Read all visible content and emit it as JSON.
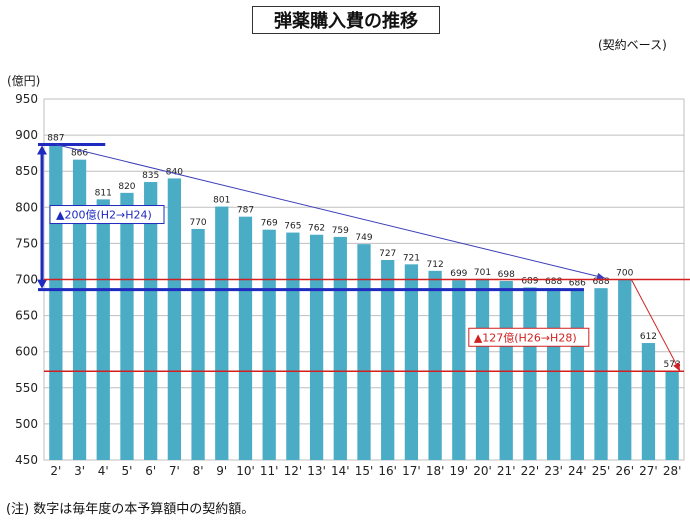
{
  "chart_data": {
    "type": "bar",
    "title": "弾薬購入費の推移",
    "subtitle": "(契約ベース)",
    "ylabel": "(億円)",
    "xlabel": "",
    "ylim": [
      450,
      950
    ],
    "yticks": [
      450,
      500,
      550,
      600,
      650,
      700,
      750,
      800,
      850,
      900,
      950
    ],
    "grid": true,
    "categories": [
      "2'",
      "3'",
      "4'",
      "5'",
      "6'",
      "7'",
      "8'",
      "9'",
      "10'",
      "11'",
      "12'",
      "13'",
      "14'",
      "15'",
      "16'",
      "17'",
      "18'",
      "19'",
      "20'",
      "21'",
      "22'",
      "23'",
      "24'",
      "25'",
      "26'",
      "27'",
      "28'"
    ],
    "values": [
      887,
      866,
      811,
      820,
      835,
      840,
      770,
      801,
      787,
      769,
      765,
      762,
      759,
      749,
      727,
      721,
      712,
      699,
      701,
      698,
      689,
      688,
      686,
      688,
      700,
      612,
      573
    ],
    "bar_color": "#4bacc6",
    "annotations": [
      {
        "text": "▲200億(H2→H24)",
        "color": "#1f2bbf"
      },
      {
        "text": "▲127億(H26→H28)",
        "color": "#d21f1f"
      }
    ]
  },
  "footnote": "(注) 数字は毎年度の本予算額中の契約額。"
}
